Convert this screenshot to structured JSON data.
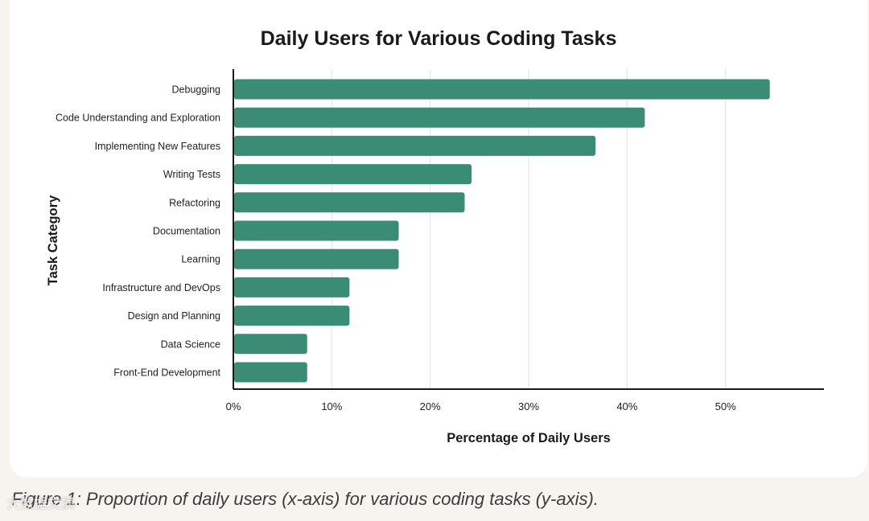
{
  "chart_data": {
    "type": "bar",
    "orientation": "horizontal",
    "title": "Daily Users for Various Coding Tasks",
    "xlabel": "Percentage of Daily Users",
    "ylabel": "Task Category",
    "categories": [
      "Debugging",
      "Code Understanding and Exploration",
      "Implementing New Features",
      "Writing Tests",
      "Refactoring",
      "Documentation",
      "Learning",
      "Infrastructure and DevOps",
      "Design and Planning",
      "Data Science",
      "Front-End Development"
    ],
    "values": [
      54.5,
      41.8,
      36.8,
      24.2,
      23.5,
      16.8,
      16.8,
      11.8,
      11.8,
      7.5,
      7.5
    ],
    "xlim": [
      0,
      60
    ],
    "xticks": [
      0,
      10,
      20,
      30,
      40,
      50
    ],
    "xtick_labels": [
      "0%",
      "10%",
      "20%",
      "30%",
      "40%",
      "50%"
    ],
    "grid": "vertical",
    "bar_color": "#3a8c74"
  },
  "caption": "Figure 1: Proportion of daily users (x-axis) for various coding tasks (y-axis).",
  "watermark": "大数据文摘"
}
